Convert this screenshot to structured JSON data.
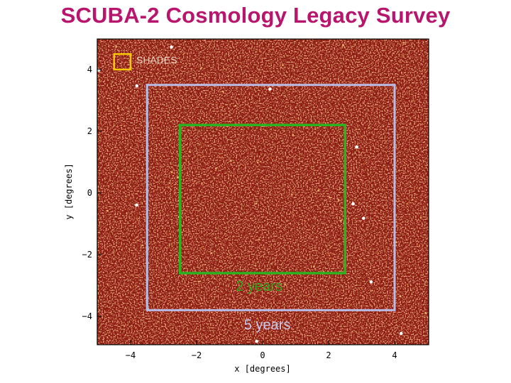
{
  "title": "SCUBA-2 Cosmology Legacy Survey",
  "map": {
    "xlabel": "x  [degrees]",
    "ylabel": "y  [degrees]",
    "xlim": [
      -5,
      5
    ],
    "ylim": [
      -5,
      5
    ],
    "x_ticks": [
      "−4",
      "−2",
      "0",
      "2",
      "4"
    ],
    "y_ticks": [
      "4",
      "2",
      "0",
      "−2",
      "−4"
    ],
    "background_color": "#8b1a10"
  },
  "regions": [
    {
      "label": "SHADES",
      "color": "#f5c800",
      "label_color": "#f3d7c4",
      "extent": {
        "x": [
          -4.5,
          -4.0
        ],
        "y": [
          4.0,
          4.5
        ]
      }
    },
    {
      "label": "5 years",
      "color": "#b9bde6",
      "label_color": "#c9c7ea",
      "extent": {
        "x": [
          -3.5,
          4.0
        ],
        "y": [
          -3.8,
          3.5
        ]
      }
    },
    {
      "label": "2 years",
      "color": "#2bb31f",
      "label_color": "#34a21e",
      "extent": {
        "x": [
          -2.5,
          2.5
        ],
        "y": [
          -2.6,
          2.2
        ]
      }
    }
  ]
}
